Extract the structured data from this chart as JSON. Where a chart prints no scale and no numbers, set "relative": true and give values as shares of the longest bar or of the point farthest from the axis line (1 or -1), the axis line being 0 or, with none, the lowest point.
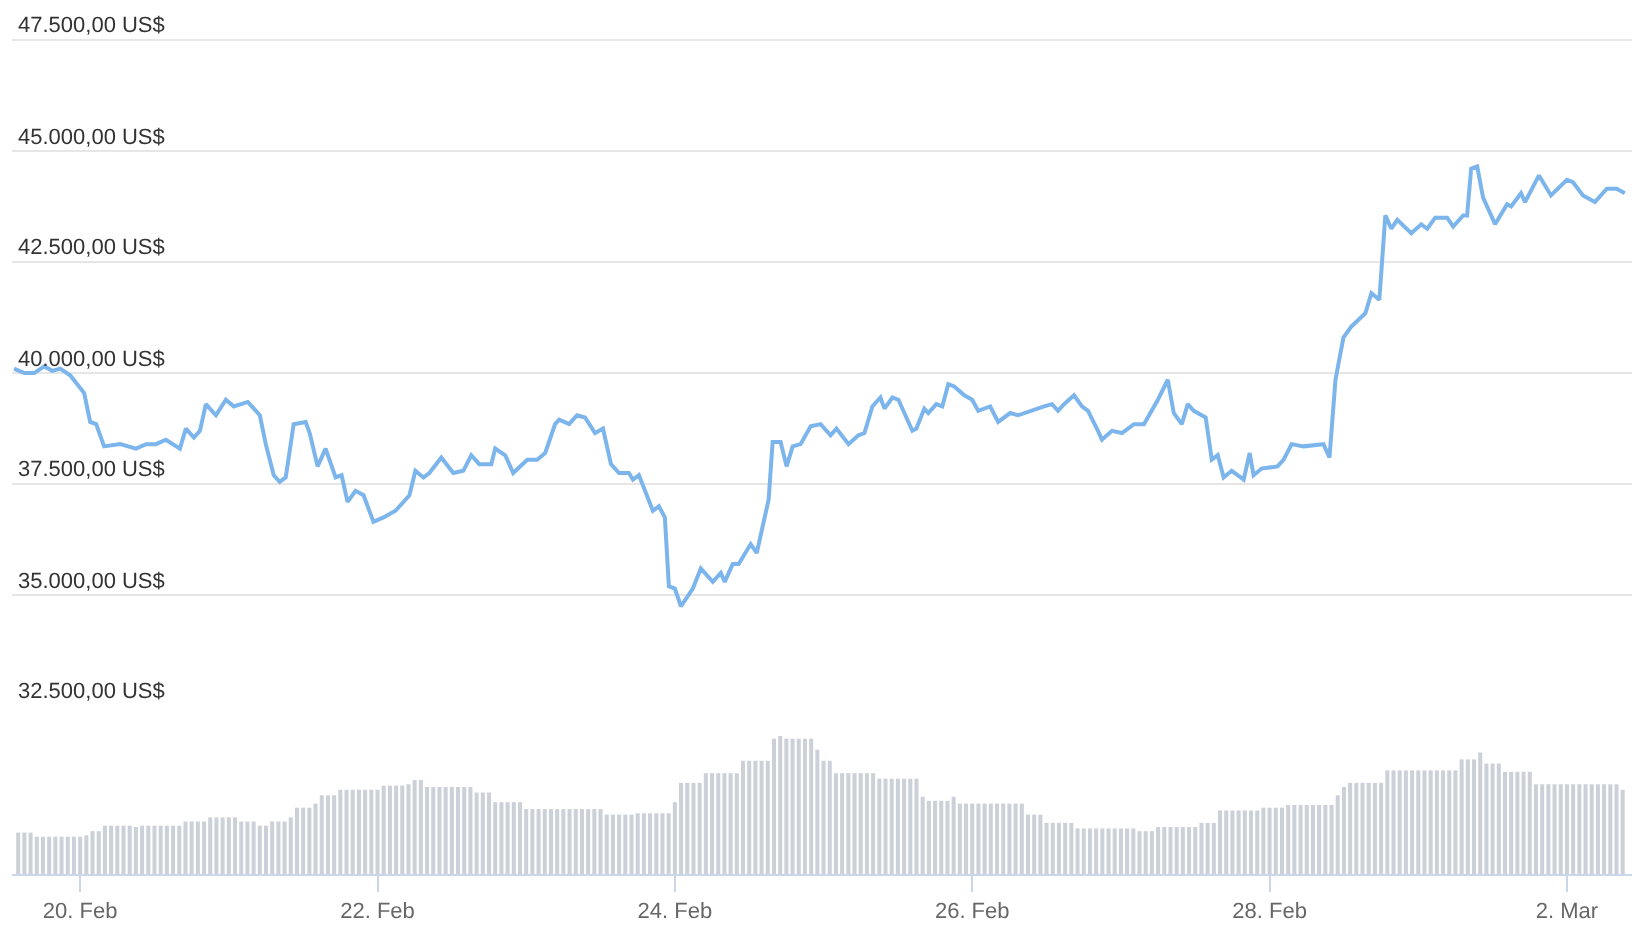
{
  "chart_data": [
    {
      "type": "line",
      "xlim": [
        "--02-19T13:00",
        "--03-02T10:30"
      ],
      "tick_labels": "y",
      "grid": "y",
      "ylim": [
        32500,
        48400
      ],
      "yticks": [
        {
          "value": 32500,
          "label": "32.500,00 US$"
        },
        {
          "value": 35000,
          "label": "35.000,00 US$"
        },
        {
          "value": 37500,
          "label": "37.500,00 US$"
        },
        {
          "value": 40000,
          "label": "40.000,00 US$"
        },
        {
          "value": 42500,
          "label": "42.500,00 US$"
        },
        {
          "value": 45000,
          "label": "45.000,00 US$"
        },
        {
          "value": 47500,
          "label": "47.500,00 US$"
        }
      ],
      "x": [
        "--02-19T13:20",
        "--02-19T15:00",
        "--02-19T16:35",
        "--02-19T18:12",
        "--02-19T19:30",
        "--02-19T20:47",
        "--02-19T22:23",
        "--02-20T00:39",
        "--02-20T01:37",
        "--02-20T02:35",
        "--02-20T03:52",
        "--02-20T06:27",
        "--02-20T09:01",
        "--02-20T10:38",
        "--02-20T12:14",
        "--02-20T13:51",
        "--02-20T16:06",
        "--02-20T17:04",
        "--02-20T18:22",
        "--02-20T19:20",
        "--02-20T20:18",
        "--02-20T21:55",
        "--02-20T23:31",
        "--02-21T00:48",
        "--02-21T03:04",
        "--02-21T05:00",
        "--02-21T05:58",
        "--02-21T07:15",
        "--02-21T08:13",
        "--02-21T09:11",
        "--02-21T10:28",
        "--02-21T12:24",
        "--02-21T13:03",
        "--02-21T14:20",
        "--02-21T15:37",
        "--02-21T17:14",
        "--02-21T18:12",
        "--02-21T19:10",
        "--02-21T20:27",
        "--02-21T21:45",
        "--02-21T23:21",
        "--02-22T00:58",
        "--02-22T02:54",
        "--02-22T05:09",
        "--02-22T06:07",
        "--02-22T07:25",
        "--02-22T08:22",
        "--02-22T10:18",
        "--02-22T12:14",
        "--02-22T13:51",
        "--02-22T15:08",
        "--02-22T16:26",
        "--02-22T18:22",
        "--02-22T19:00",
        "--02-22T20:37",
        "--02-22T21:54",
        "--02-23T00:10",
        "--02-23T01:46",
        "--02-23T03:04",
        "--02-23T04:40",
        "--02-23T05:19",
        "--02-23T06:56",
        "--02-23T08:13",
        "--02-23T09:30",
        "--02-23T11:07",
        "--02-23T12:24",
        "--02-23T13:41",
        "--02-23T14:59",
        "--02-23T16:35",
        "--02-23T17:14",
        "--02-23T18:12",
        "--02-23T20:27",
        "--02-23T21:25",
        "--02-23T22:23",
        "--02-23T23:02",
        "--02-24T00:00",
        "--02-24T00:58",
        "--02-24T02:54",
        "--02-24T04:11",
        "--02-24T06:07",
        "--02-24T07:25",
        "--02-24T08:03",
        "--02-24T09:20",
        "--02-24T10:18",
        "--02-24T12:14",
        "--02-24T13:13",
        "--02-24T15:08",
        "--02-24T15:47",
        "--02-24T17:04",
        "--02-24T18:02",
        "--02-24T19:01",
        "--02-24T20:18",
        "--02-24T21:55",
        "--02-24T23:31",
        "--02-25T01:08",
        "--02-25T02:05",
        "--02-25T04:02",
        "--02-25T05:38",
        "--02-25T06:36",
        "--02-25T07:53",
        "--02-25T09:11",
        "--02-25T09:50",
        "--02-25T11:07",
        "--02-25T12:05",
        "--02-25T14:20",
        "--02-25T14:59",
        "--02-25T16:16",
        "--02-25T16:55",
        "--02-25T18:12",
        "--02-25T19:10",
        "--02-25T20:08",
        "--02-25T21:06",
        "--02-25T22:43",
        "--02-26T00:00",
        "--02-26T00:58",
        "--02-26T02:54",
        "--02-26T04:11",
        "--02-26T06:07",
        "--02-26T07:25",
        "--02-26T11:36",
        "--02-26T12:53",
        "--02-26T13:51",
        "--02-26T14:49",
        "--02-26T16:26",
        "--02-26T17:43",
        "--02-26T18:41",
        "--02-26T20:18",
        "--02-26T20:56",
        "--02-26T22:33",
        "--02-27T00:10",
        "--02-27T02:06",
        "--02-27T03:43",
        "--02-27T05:58",
        "--02-27T07:34",
        "--02-27T08:32",
        "--02-27T09:50",
        "--02-27T10:47",
        "--02-27T11:46",
        "--02-27T13:41",
        "--02-27T14:40",
        "--02-27T15:38",
        "--02-27T16:35",
        "--02-27T17:53",
        "--02-27T19:49",
        "--02-27T20:47",
        "--02-27T21:25",
        "--02-27T22:43",
        "--02-28T01:17",
        "--02-28T02:16",
        "--02-28T03:33",
        "--02-28T05:29",
        "--02-28T08:42",
        "--02-28T09:40",
        "--02-28T10:38",
        "--02-28T11:55",
        "--02-28T13:13",
        "--02-28T15:28",
        "--02-28T16:26",
        "--02-28T17:43",
        "--02-28T18:41",
        "--02-28T19:39",
        "--02-28T20:37",
        "--02-28T22:52",
        "--03-01T00:29",
        "--03-01T01:27",
        "--03-01T02:44",
        "--03-01T04:40",
        "--03-01T05:38",
        "--03-01T07:15",
        "--03-01T07:53",
        "--03-01T08:32",
        "--03-01T09:31",
        "--03-01T10:28",
        "--03-01T12:24",
        "--03-01T14:20",
        "--03-01T14:59",
        "--03-01T16:35",
        "--03-01T17:14",
        "--03-01T19:29",
        "--03-01T21:25",
        "--03-02T00:00",
        "--03-02T00:58",
        "--03-02T02:35",
        "--03-02T04:31",
        "--03-02T06:26",
        "--03-02T08:03",
        "--03-02T09:20"
      ],
      "series": [
        {
          "color": "#7cb5ec",
          "values": [
            40100,
            40000,
            40000,
            40150,
            40050,
            40100,
            39950,
            39550,
            38900,
            38850,
            38350,
            38400,
            38300,
            38400,
            38400,
            38500,
            38300,
            38750,
            38550,
            38700,
            39300,
            39050,
            39400,
            39250,
            39350,
            39050,
            38400,
            37700,
            37550,
            37650,
            38850,
            38900,
            38650,
            37900,
            38300,
            37650,
            37700,
            37100,
            37350,
            37250,
            36650,
            36750,
            36900,
            37250,
            37800,
            37650,
            37750,
            38100,
            37750,
            37800,
            38150,
            37950,
            37950,
            38300,
            38150,
            37750,
            38050,
            38050,
            38200,
            38850,
            38950,
            38850,
            39050,
            39000,
            38650,
            38750,
            37950,
            37750,
            37750,
            37600,
            37700,
            36900,
            37000,
            36750,
            35200,
            35150,
            34750,
            35150,
            35600,
            35300,
            35500,
            35300,
            35700,
            35700,
            36150,
            35950,
            37150,
            38450,
            38450,
            37900,
            38350,
            38400,
            38800,
            38850,
            38600,
            38750,
            38400,
            38600,
            38650,
            39250,
            39450,
            39200,
            39450,
            39400,
            38700,
            38750,
            39200,
            39100,
            39300,
            39250,
            39750,
            39700,
            39500,
            39400,
            39150,
            39250,
            38900,
            39100,
            39050,
            39250,
            39300,
            39150,
            39300,
            39500,
            39250,
            39150,
            38700,
            38500,
            38700,
            38650,
            38850,
            38850,
            39400,
            39850,
            39100,
            38850,
            39300,
            39150,
            39000,
            38050,
            38150,
            37650,
            37800,
            37600,
            38200,
            37700,
            37850,
            37900,
            38050,
            38400,
            38350,
            38400,
            38100,
            39850,
            40800,
            41050,
            41350,
            41800,
            41650,
            43550,
            43250,
            43450,
            43150,
            43350,
            43250,
            43500,
            43500,
            43300,
            43550,
            43550,
            44600,
            44650,
            43950,
            43350,
            43800,
            43750,
            44050,
            43850,
            44450,
            44000,
            44350,
            44300,
            44000,
            43850,
            44150,
            44150,
            44050
          ]
        }
      ]
    },
    {
      "type": "bar",
      "relative": true,
      "tick_labels": "x",
      "color": "#ccd0d8",
      "xlim": [
        "--02-19T13:00",
        "--03-02T10:30"
      ],
      "xticks": [
        {
          "value": "--02-20",
          "label": "20. Feb"
        },
        {
          "value": "--02-22",
          "label": "22. Feb"
        },
        {
          "value": "--02-24",
          "label": "24. Feb"
        },
        {
          "value": "--02-26",
          "label": "26. Feb"
        },
        {
          "value": "--02-28",
          "label": "28. Feb"
        },
        {
          "value": "--03-02",
          "label": "2. Mar"
        }
      ],
      "x": [
        "--02-19T14:00",
        "--02-19T15:00",
        "--02-19T16:00",
        "--02-19T17:00",
        "--02-19T18:00",
        "--02-19T19:00",
        "--02-19T20:00",
        "--02-19T21:00",
        "--02-19T22:00",
        "--02-19T23:00",
        "--02-20T00:00",
        "--02-20T01:00",
        "--02-20T02:00",
        "--02-20T03:00",
        "--02-20T04:00",
        "--02-20T05:00",
        "--02-20T06:00",
        "--02-20T07:00",
        "--02-20T08:00",
        "--02-20T09:00",
        "--02-20T10:00",
        "--02-20T11:00",
        "--02-20T12:00",
        "--02-20T13:00",
        "--02-20T14:00",
        "--02-20T15:00",
        "--02-20T16:00",
        "--02-20T17:00",
        "--02-20T18:00",
        "--02-20T19:00",
        "--02-20T20:00",
        "--02-20T21:00",
        "--02-20T22:00",
        "--02-20T23:00",
        "--02-21T00:00",
        "--02-21T01:00",
        "--02-21T02:00",
        "--02-21T03:00",
        "--02-21T04:00",
        "--02-21T05:00",
        "--02-21T06:00",
        "--02-21T07:00",
        "--02-21T08:00",
        "--02-21T09:00",
        "--02-21T10:00",
        "--02-21T11:00",
        "--02-21T12:00",
        "--02-21T13:00",
        "--02-21T14:00",
        "--02-21T15:00",
        "--02-21T16:00",
        "--02-21T17:00",
        "--02-21T18:00",
        "--02-21T19:00",
        "--02-21T20:00",
        "--02-21T21:00",
        "--02-21T22:00",
        "--02-21T23:00",
        "--02-22T00:00",
        "--02-22T01:00",
        "--02-22T02:00",
        "--02-22T03:00",
        "--02-22T04:00",
        "--02-22T05:00",
        "--02-22T06:00",
        "--02-22T07:00",
        "--02-22T08:00",
        "--02-22T09:00",
        "--02-22T10:00",
        "--02-22T11:00",
        "--02-22T12:00",
        "--02-22T13:00",
        "--02-22T14:00",
        "--02-22T15:00",
        "--02-22T16:00",
        "--02-22T17:00",
        "--02-22T18:00",
        "--02-22T19:00",
        "--02-22T20:00",
        "--02-22T21:00",
        "--02-22T22:00",
        "--02-22T23:00",
        "--02-23T00:00",
        "--02-23T01:00",
        "--02-23T02:00",
        "--02-23T03:00",
        "--02-23T04:00",
        "--02-23T05:00",
        "--02-23T06:00",
        "--02-23T07:00",
        "--02-23T08:00",
        "--02-23T09:00",
        "--02-23T10:00",
        "--02-23T11:00",
        "--02-23T12:00",
        "--02-23T13:00",
        "--02-23T14:00",
        "--02-23T15:00",
        "--02-23T16:00",
        "--02-23T17:00",
        "--02-23T18:00",
        "--02-23T19:00",
        "--02-23T20:00",
        "--02-23T21:00",
        "--02-23T22:00",
        "--02-23T23:00",
        "--02-24T00:00",
        "--02-24T01:00",
        "--02-24T02:00",
        "--02-24T03:00",
        "--02-24T04:00",
        "--02-24T05:00",
        "--02-24T06:00",
        "--02-24T07:00",
        "--02-24T08:00",
        "--02-24T09:00",
        "--02-24T10:00",
        "--02-24T11:00",
        "--02-24T12:00",
        "--02-24T13:00",
        "--02-24T14:00",
        "--02-24T15:00",
        "--02-24T16:00",
        "--02-24T17:00",
        "--02-24T18:00",
        "--02-24T19:00",
        "--02-24T20:00",
        "--02-24T21:00",
        "--02-24T22:00",
        "--02-24T23:00",
        "--02-25T00:00",
        "--02-25T01:00",
        "--02-25T02:00",
        "--02-25T03:00",
        "--02-25T04:00",
        "--02-25T05:00",
        "--02-25T06:00",
        "--02-25T07:00",
        "--02-25T08:00",
        "--02-25T09:00",
        "--02-25T10:00",
        "--02-25T11:00",
        "--02-25T12:00",
        "--02-25T13:00",
        "--02-25T14:00",
        "--02-25T15:00",
        "--02-25T16:00",
        "--02-25T17:00",
        "--02-25T18:00",
        "--02-25T19:00",
        "--02-25T20:00",
        "--02-25T21:00",
        "--02-25T22:00",
        "--02-25T23:00",
        "--02-26T00:00",
        "--02-26T01:00",
        "--02-26T02:00",
        "--02-26T03:00",
        "--02-26T04:00",
        "--02-26T05:00",
        "--02-26T06:00",
        "--02-26T07:00",
        "--02-26T08:00",
        "--02-26T09:00",
        "--02-26T10:00",
        "--02-26T11:00",
        "--02-26T12:00",
        "--02-26T13:00",
        "--02-26T14:00",
        "--02-26T15:00",
        "--02-26T16:00",
        "--02-26T17:00",
        "--02-26T18:00",
        "--02-26T19:00",
        "--02-26T20:00",
        "--02-26T21:00",
        "--02-26T22:00",
        "--02-26T23:00",
        "--02-27T00:00",
        "--02-27T01:00",
        "--02-27T02:00",
        "--02-27T03:00",
        "--02-27T04:00",
        "--02-27T05:00",
        "--02-27T06:00",
        "--02-27T07:00",
        "--02-27T08:00",
        "--02-27T09:00",
        "--02-27T10:00",
        "--02-27T11:00",
        "--02-27T12:00",
        "--02-27T13:00",
        "--02-27T14:00",
        "--02-27T15:00",
        "--02-27T16:00",
        "--02-27T17:00",
        "--02-27T18:00",
        "--02-27T19:00",
        "--02-27T20:00",
        "--02-27T21:00",
        "--02-27T22:00",
        "--02-27T23:00",
        "--02-28T00:00",
        "--02-28T01:00",
        "--02-28T02:00",
        "--02-28T03:00",
        "--02-28T04:00",
        "--02-28T05:00",
        "--02-28T06:00",
        "--02-28T07:00",
        "--02-28T08:00",
        "--02-28T09:00",
        "--02-28T10:00",
        "--02-28T11:00",
        "--02-28T12:00",
        "--02-28T13:00",
        "--02-28T14:00",
        "--02-28T15:00",
        "--02-28T16:00",
        "--02-28T17:00",
        "--02-28T18:00",
        "--02-28T19:00",
        "--02-28T20:00",
        "--02-28T21:00",
        "--02-28T22:00",
        "--02-28T23:00",
        "--03-01T00:00",
        "--03-01T01:00",
        "--03-01T02:00",
        "--03-01T03:00",
        "--03-01T04:00",
        "--03-01T05:00",
        "--03-01T06:00",
        "--03-01T07:00",
        "--03-01T08:00",
        "--03-01T09:00",
        "--03-01T10:00",
        "--03-01T11:00",
        "--03-01T12:00",
        "--03-01T13:00",
        "--03-01T14:00",
        "--03-01T15:00",
        "--03-01T16:00",
        "--03-01T17:00",
        "--03-01T18:00",
        "--03-01T19:00",
        "--03-01T20:00",
        "--03-01T21:00",
        "--03-01T22:00",
        "--03-01T23:00",
        "--03-02T00:00",
        "--03-02T01:00",
        "--03-02T02:00",
        "--03-02T03:00",
        "--03-02T04:00",
        "--03-02T05:00",
        "--03-02T06:00",
        "--03-02T07:00",
        "--03-02T08:00",
        "--03-02T09:00"
      ],
      "values": [
        0.3,
        0.3,
        0.3,
        0.27,
        0.27,
        0.27,
        0.27,
        0.27,
        0.27,
        0.27,
        0.27,
        0.28,
        0.31,
        0.31,
        0.35,
        0.35,
        0.35,
        0.35,
        0.35,
        0.34,
        0.35,
        0.35,
        0.35,
        0.35,
        0.35,
        0.35,
        0.35,
        0.38,
        0.38,
        0.38,
        0.38,
        0.41,
        0.41,
        0.41,
        0.41,
        0.41,
        0.38,
        0.38,
        0.38,
        0.35,
        0.35,
        0.38,
        0.38,
        0.38,
        0.41,
        0.48,
        0.48,
        0.48,
        0.51,
        0.57,
        0.57,
        0.57,
        0.61,
        0.61,
        0.61,
        0.61,
        0.61,
        0.61,
        0.61,
        0.64,
        0.64,
        0.64,
        0.64,
        0.65,
        0.68,
        0.68,
        0.63,
        0.63,
        0.63,
        0.63,
        0.63,
        0.63,
        0.63,
        0.63,
        0.59,
        0.59,
        0.59,
        0.52,
        0.52,
        0.52,
        0.52,
        0.52,
        0.47,
        0.47,
        0.47,
        0.47,
        0.47,
        0.47,
        0.47,
        0.47,
        0.47,
        0.47,
        0.47,
        0.47,
        0.47,
        0.43,
        0.43,
        0.43,
        0.43,
        0.43,
        0.44,
        0.44,
        0.44,
        0.44,
        0.44,
        0.44,
        0.52,
        0.66,
        0.66,
        0.66,
        0.66,
        0.73,
        0.73,
        0.73,
        0.73,
        0.73,
        0.73,
        0.82,
        0.82,
        0.82,
        0.82,
        0.82,
        0.98,
        1,
        0.98,
        0.98,
        0.98,
        0.98,
        0.98,
        0.9,
        0.82,
        0.82,
        0.73,
        0.73,
        0.73,
        0.73,
        0.73,
        0.73,
        0.73,
        0.69,
        0.69,
        0.69,
        0.69,
        0.69,
        0.69,
        0.69,
        0.56,
        0.53,
        0.53,
        0.53,
        0.53,
        0.56,
        0.51,
        0.51,
        0.51,
        0.51,
        0.51,
        0.51,
        0.51,
        0.51,
        0.51,
        0.51,
        0.51,
        0.43,
        0.43,
        0.43,
        0.37,
        0.37,
        0.37,
        0.37,
        0.37,
        0.33,
        0.33,
        0.33,
        0.33,
        0.33,
        0.33,
        0.33,
        0.33,
        0.33,
        0.33,
        0.31,
        0.31,
        0.31,
        0.34,
        0.34,
        0.34,
        0.34,
        0.34,
        0.34,
        0.34,
        0.37,
        0.37,
        0.37,
        0.46,
        0.46,
        0.46,
        0.46,
        0.46,
        0.46,
        0.46,
        0.48,
        0.48,
        0.48,
        0.48,
        0.5,
        0.5,
        0.5,
        0.5,
        0.5,
        0.5,
        0.5,
        0.5,
        0.57,
        0.63,
        0.66,
        0.66,
        0.66,
        0.66,
        0.66,
        0.66,
        0.75,
        0.75,
        0.75,
        0.75,
        0.75,
        0.75,
        0.75,
        0.75,
        0.75,
        0.75,
        0.75,
        0.75,
        0.83,
        0.83,
        0.83,
        0.88,
        0.8,
        0.8,
        0.8,
        0.74,
        0.74,
        0.74,
        0.74,
        0.74,
        0.65,
        0.65,
        0.65,
        0.65,
        0.65,
        0.65,
        0.65,
        0.65,
        0.65,
        0.65,
        0.65,
        0.65,
        0.65,
        0.65,
        0.61
      ]
    }
  ]
}
